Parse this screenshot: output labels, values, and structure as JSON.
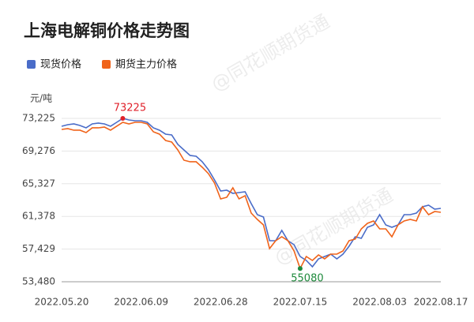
{
  "chart_data": {
    "type": "line",
    "title": "上海电解铜价格走势图",
    "y_unit": "元/吨",
    "watermark": "@同花顺期货通",
    "categories": [
      "2022.05.20",
      null,
      null,
      null,
      null,
      null,
      null,
      null,
      null,
      null,
      null,
      null,
      null,
      "2022.06.09",
      null,
      null,
      null,
      null,
      null,
      null,
      null,
      null,
      null,
      null,
      null,
      null,
      "2022.06.28",
      null,
      null,
      null,
      null,
      null,
      null,
      null,
      null,
      null,
      null,
      null,
      null,
      "2022.07.15",
      null,
      null,
      null,
      null,
      null,
      null,
      null,
      null,
      null,
      null,
      null,
      null,
      "2022.08.03",
      null,
      null,
      null,
      null,
      null,
      null,
      null,
      null,
      null,
      "2022.08.17"
    ],
    "series": [
      {
        "name": "现货价格",
        "color": "#4a6cc8",
        "values": [
          72273,
          72463,
          72558,
          72369,
          72082,
          72558,
          72654,
          72558,
          72273,
          72749,
          73225,
          73036,
          72940,
          72940,
          72749,
          72082,
          71796,
          71319,
          71224,
          70078,
          69410,
          68744,
          68648,
          67980,
          67026,
          65786,
          64450,
          64546,
          64164,
          64260,
          64355,
          62924,
          61589,
          61302,
          58441,
          58441,
          59681,
          58441,
          57963,
          56533,
          56056,
          55293,
          56246,
          56533,
          56819,
          56246,
          56819,
          57773,
          58917,
          58727,
          60062,
          60349,
          61589,
          60349,
          60062,
          60349,
          61589,
          61589,
          61779,
          62542,
          62733,
          62256,
          62352
        ]
      },
      {
        "name": "期货主力价格",
        "color": "#f0631a",
        "values": [
          71891,
          71987,
          71796,
          71796,
          71510,
          72082,
          72082,
          72177,
          71796,
          72273,
          72749,
          72558,
          72749,
          72749,
          72558,
          71606,
          71319,
          70556,
          70365,
          69410,
          68171,
          67980,
          67980,
          67313,
          66550,
          65405,
          63497,
          63688,
          64833,
          63497,
          63879,
          61779,
          61016,
          60349,
          57487,
          58441,
          58917,
          58441,
          57200,
          55080,
          56533,
          56056,
          56724,
          56246,
          56819,
          56819,
          57200,
          58441,
          58632,
          59872,
          60540,
          60826,
          59872,
          59872,
          58917,
          60349,
          60826,
          61016,
          60826,
          62542,
          61589,
          61970,
          61875
        ]
      }
    ],
    "highlights": [
      {
        "series": 0,
        "index": 10,
        "color": "#e0202a"
      },
      {
        "series": 1,
        "index": 39,
        "color": "#1e8a3c"
      }
    ],
    "ylim": [
      53480,
      73225
    ],
    "yticks": [
      {
        "value": 53480,
        "label": "53,480"
      },
      {
        "value": 57429,
        "label": "57,429"
      },
      {
        "value": 61378,
        "label": "61,378"
      },
      {
        "value": 65327,
        "label": "65,327"
      },
      {
        "value": 69276,
        "label": "69,276"
      },
      {
        "value": 73225,
        "label": "73,225"
      }
    ],
    "grid": true
  }
}
